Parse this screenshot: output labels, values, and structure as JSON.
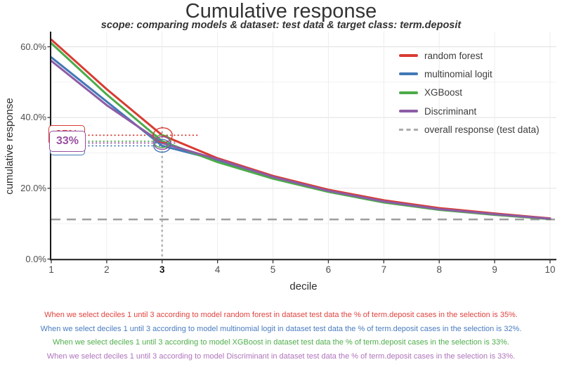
{
  "chart_data": {
    "type": "line",
    "title": "Cumulative response",
    "subtitle": "scope: comparing models & dataset: test data & target class: term.deposit",
    "xlabel": "decile",
    "ylabel": "cumulative response",
    "x": [
      1,
      2,
      3,
      4,
      5,
      6,
      7,
      8,
      9,
      10
    ],
    "highlighted_x": 3,
    "ylim": [
      0,
      64
    ],
    "y_ticks": [
      {
        "value": 0,
        "label": "0.0%"
      },
      {
        "value": 20,
        "label": "20.0%"
      },
      {
        "value": 40,
        "label": "40.0%"
      },
      {
        "value": 60,
        "label": "60.0%"
      }
    ],
    "y_minor_ticks": [
      10,
      30,
      50
    ],
    "grid": "horizontal major+minor, vertical major",
    "legend_position": "inside top-right",
    "series": [
      {
        "name": "random forest",
        "color": "#D93B32",
        "values": [
          62,
          48,
          35,
          28.5,
          23.5,
          19.6,
          16.6,
          14.4,
          12.9,
          11.5
        ]
      },
      {
        "name": "multinomial logit",
        "color": "#4379B6",
        "values": [
          57,
          44.5,
          32,
          28.0,
          23.1,
          19.3,
          16.3,
          14.1,
          12.7,
          11.3
        ]
      },
      {
        "name": "XGBoost",
        "color": "#4CAB48",
        "values": [
          61,
          46.5,
          33.3,
          27.4,
          22.7,
          19.0,
          16.0,
          13.9,
          12.5,
          11.3
        ]
      },
      {
        "name": "Discriminant",
        "color": "#8D5CA6",
        "values": [
          56,
          43.5,
          32.8,
          28.2,
          23.2,
          19.3,
          16.3,
          14.1,
          12.7,
          11.4
        ]
      }
    ],
    "reference_line": {
      "name": "overall response (test data)",
      "color": "#9E9E9E",
      "style": "dashed",
      "value": 11.2
    },
    "highlight": {
      "decile": 3,
      "callouts": [
        {
          "model": "random forest",
          "text": "35%",
          "value": 35,
          "color": "#D93B32"
        },
        {
          "model": "XGBoost",
          "text": "33%",
          "value": 33.3,
          "color": "#4CAB48"
        },
        {
          "model": "Discriminant",
          "text": "33%",
          "value": 32.8,
          "color": "#9850A0"
        },
        {
          "model": "multinomial logit",
          "text": "32%",
          "value": 32,
          "color": "#4379B6"
        }
      ]
    }
  },
  "annotations": [
    {
      "color": "#DF4540",
      "text": "When we select deciles 1 until 3 according to model random forest in dataset test data the % of term.deposit cases in the selection is 35%."
    },
    {
      "color": "#4A7CBF",
      "text": "When we select deciles 1 until 3 according to model multinomial logit in dataset test data the % of term.deposit cases in the selection is 32%."
    },
    {
      "color": "#4FAE4B",
      "text": "When we select deciles 1 until 3 according to model XGBoost in dataset test data the % of term.deposit cases in the selection is 33%."
    },
    {
      "color": "#AF74BC",
      "text": "When we select deciles 1 until 3 according to model Discriminant in dataset test data the % of term.deposit cases in the selection is 33%."
    }
  ]
}
